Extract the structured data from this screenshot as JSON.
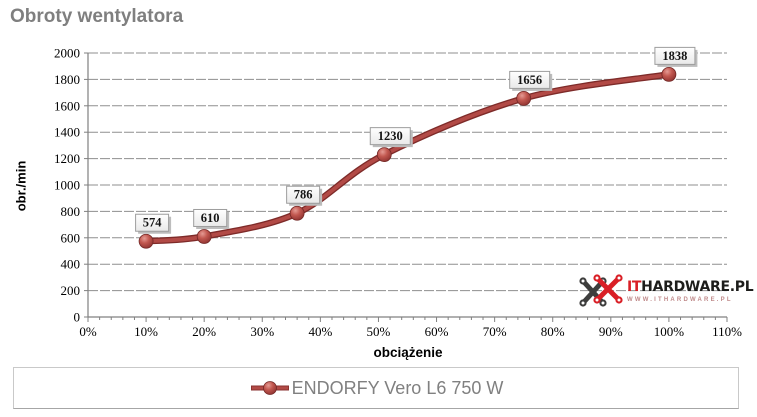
{
  "title": "Obroty wentylatora",
  "chart_data": {
    "type": "line",
    "title": "Obroty wentylatora",
    "xlabel": "obciążenie",
    "ylabel": "obr./min",
    "xlim": [
      0,
      110
    ],
    "ylim": [
      0,
      2000
    ],
    "x_tick_step": 10,
    "x_minor_tick_step": 2,
    "x_tick_labels": [
      "0%",
      "10%",
      "20%",
      "30%",
      "40%",
      "50%",
      "60%",
      "70%",
      "80%",
      "90%",
      "100%",
      "110%"
    ],
    "y_tick_step": 200,
    "y_tick_labels": [
      "0",
      "200",
      "400",
      "600",
      "800",
      "1000",
      "1200",
      "1400",
      "1600",
      "1800",
      "2000"
    ],
    "grid": "horizontal-dashed",
    "legend_position": "bottom",
    "series": [
      {
        "name": "ENDORFY Vero L6 750 W",
        "x": [
          10,
          20,
          36,
          51,
          75,
          100
        ],
        "values": [
          574,
          610,
          786,
          1230,
          1656,
          1838
        ],
        "data_labels": [
          574,
          610,
          786,
          1230,
          1656,
          1838
        ],
        "color": "#A8403D",
        "marker": "circle"
      }
    ]
  },
  "legend": {
    "label": "ENDORFY Vero L6 750 W"
  },
  "watermark": {
    "brand_prefix": "IT",
    "brand_rest": "HARDWARE.PL",
    "subtitle": "WWW.ITHARDWARE.PL"
  },
  "colors": {
    "accent": "#A8403D",
    "accent_dark": "#7E2B29",
    "title_text": "#7F7F7F",
    "legend_text": "#808080",
    "grid": "#8F8F8F",
    "axis": "#808080",
    "label_border": "#9D9D9D",
    "brand_red": "#D91F26",
    "brand_dark": "#1D1D1B"
  }
}
